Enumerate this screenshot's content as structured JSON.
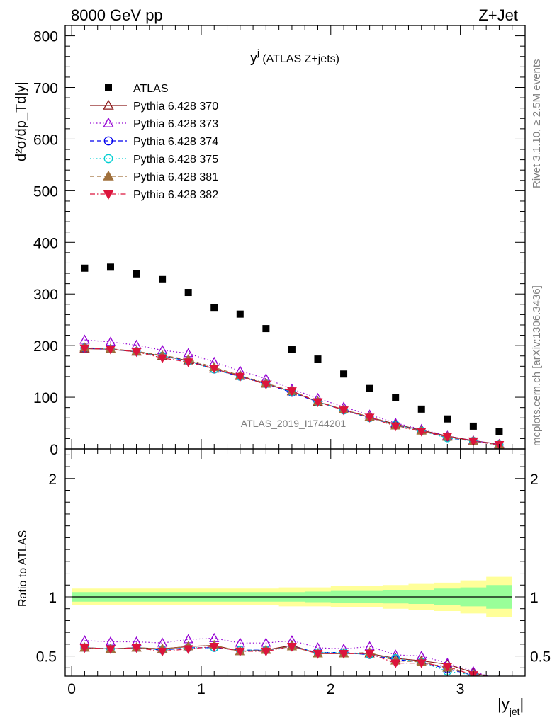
{
  "header": {
    "left": "8000 GeV pp",
    "right": "Z+Jet"
  },
  "side_labels": {
    "rivet": "Rivet 3.1.10, ≥ 2.5M events",
    "mcplots": "mcplots.cern.ch [arXiv:1306.3436]"
  },
  "chart_data": [
    {
      "type": "scatter",
      "title": "y",
      "title_superscript": "j",
      "title_suffix": " (ATLAS Z+jets)",
      "ylabel": "d²σ/dp_Td|y|",
      "watermark": "ATLAS_2019_I1744201",
      "xlim": [
        -0.05,
        3.5
      ],
      "ylim": [
        0,
        820
      ],
      "x_ticks": [
        0,
        1,
        2,
        3
      ],
      "y_ticks": [
        0,
        100,
        200,
        300,
        400,
        500,
        600,
        700,
        800
      ],
      "legend_position": "top-left",
      "x": [
        0.1,
        0.3,
        0.5,
        0.7,
        0.9,
        1.1,
        1.3,
        1.5,
        1.7,
        1.9,
        2.1,
        2.3,
        2.5,
        2.7,
        2.9,
        3.1,
        3.3
      ],
      "series": [
        {
          "name": "ATLAS",
          "color": "#000000",
          "marker": "square",
          "line": "none",
          "values": [
            350,
            352,
            339,
            328,
            303,
            274,
            261,
            233,
            192,
            174,
            145,
            117,
            99,
            77,
            58,
            44,
            33
          ]
        },
        {
          "name": "Pythia 6.428 370",
          "color": "#8b1a1a",
          "marker": "triangle-open",
          "line": "solid",
          "values": [
            194,
            193,
            188,
            180,
            171,
            155,
            141,
            126,
            111,
            91,
            76,
            61,
            48,
            36,
            25,
            16,
            9
          ]
        },
        {
          "name": "Pythia 6.428 373",
          "color": "#9400d3",
          "marker": "triangle-open",
          "line": "dotted",
          "values": [
            211,
            207,
            201,
            191,
            185,
            168,
            151,
            136,
            116,
            98,
            81,
            66,
            50,
            38,
            25,
            16,
            9
          ]
        },
        {
          "name": "Pythia 6.428 374",
          "color": "#0000ee",
          "marker": "circle-open",
          "line": "dashed",
          "values": [
            195,
            193,
            189,
            180,
            170,
            154,
            140,
            126,
            109,
            91,
            75,
            60,
            46,
            35,
            22,
            15,
            8
          ]
        },
        {
          "name": "Pythia 6.428 375",
          "color": "#00ced1",
          "marker": "circle-open",
          "line": "dotted",
          "values": [
            196,
            193,
            188,
            180,
            170,
            154,
            140,
            126,
            110,
            91,
            75,
            60,
            47,
            35,
            21,
            15,
            8
          ]
        },
        {
          "name": "Pythia 6.428 381",
          "color": "#a0703c",
          "marker": "triangle-filled",
          "line": "dashed",
          "values": [
            196,
            194,
            189,
            181,
            173,
            158,
            142,
            127,
            112,
            92,
            76,
            62,
            45,
            35,
            23,
            15,
            8
          ]
        },
        {
          "name": "Pythia 6.428 382",
          "color": "#dc143c",
          "marker": "triangle-down-filled",
          "line": "dashdot",
          "values": [
            195,
            193,
            188,
            176,
            168,
            156,
            140,
            125,
            112,
            91,
            75,
            61,
            44,
            34,
            24,
            15,
            8
          ]
        }
      ]
    },
    {
      "type": "scatter",
      "ylabel": "Ratio to ATLAS",
      "xlabel": "|y_jet|",
      "xlabel_main": "|y",
      "xlabel_sub": "jet",
      "xlabel_end": "|",
      "xlim": [
        -0.05,
        3.5
      ],
      "ylim": [
        0.33,
        2.25
      ],
      "x_ticks": [
        0,
        1,
        2,
        3
      ],
      "y_ticks": [
        0.5,
        1,
        2
      ],
      "x": [
        0.1,
        0.3,
        0.5,
        0.7,
        0.9,
        1.1,
        1.3,
        1.5,
        1.7,
        1.9,
        2.1,
        2.3,
        2.5,
        2.7,
        2.9,
        3.1,
        3.3
      ],
      "band_outer_halfwidth": [
        0.07,
        0.07,
        0.07,
        0.07,
        0.07,
        0.07,
        0.07,
        0.07,
        0.08,
        0.08,
        0.09,
        0.09,
        0.1,
        0.11,
        0.12,
        0.14,
        0.17
      ],
      "band_inner_halfwidth": [
        0.04,
        0.04,
        0.04,
        0.04,
        0.04,
        0.04,
        0.04,
        0.04,
        0.04,
        0.045,
        0.05,
        0.05,
        0.055,
        0.06,
        0.07,
        0.08,
        0.1
      ],
      "band_outer_color": "#ffff99",
      "band_inner_color": "#99ff99",
      "series": [
        {
          "name": "Pythia 6.428 370",
          "values": [
            0.57,
            0.56,
            0.57,
            0.56,
            0.58,
            0.59,
            0.54,
            0.55,
            0.59,
            0.52,
            0.52,
            0.52,
            0.48,
            0.46,
            0.43,
            0.36,
            0.3
          ]
        },
        {
          "name": "Pythia 6.428 373",
          "values": [
            0.63,
            0.62,
            0.62,
            0.61,
            0.64,
            0.65,
            0.61,
            0.61,
            0.63,
            0.57,
            0.56,
            0.58,
            0.51,
            0.5,
            0.44,
            0.37,
            0.3
          ]
        },
        {
          "name": "Pythia 6.428 374",
          "values": [
            0.57,
            0.56,
            0.57,
            0.55,
            0.57,
            0.57,
            0.55,
            0.55,
            0.58,
            0.53,
            0.53,
            0.51,
            0.47,
            0.45,
            0.39,
            0.34,
            0.3
          ]
        },
        {
          "name": "Pythia 6.428 375",
          "values": [
            0.57,
            0.56,
            0.57,
            0.55,
            0.57,
            0.57,
            0.55,
            0.55,
            0.58,
            0.53,
            0.53,
            0.51,
            0.48,
            0.45,
            0.37,
            0.34,
            0.3
          ]
        },
        {
          "name": "Pythia 6.428 381",
          "values": [
            0.57,
            0.56,
            0.57,
            0.56,
            0.58,
            0.59,
            0.54,
            0.55,
            0.58,
            0.52,
            0.52,
            0.53,
            0.46,
            0.45,
            0.4,
            0.34,
            0.3
          ]
        },
        {
          "name": "Pythia 6.428 382",
          "values": [
            0.57,
            0.56,
            0.57,
            0.54,
            0.56,
            0.58,
            0.54,
            0.54,
            0.58,
            0.52,
            0.52,
            0.52,
            0.44,
            0.44,
            0.41,
            0.34,
            0.3
          ]
        }
      ]
    }
  ]
}
